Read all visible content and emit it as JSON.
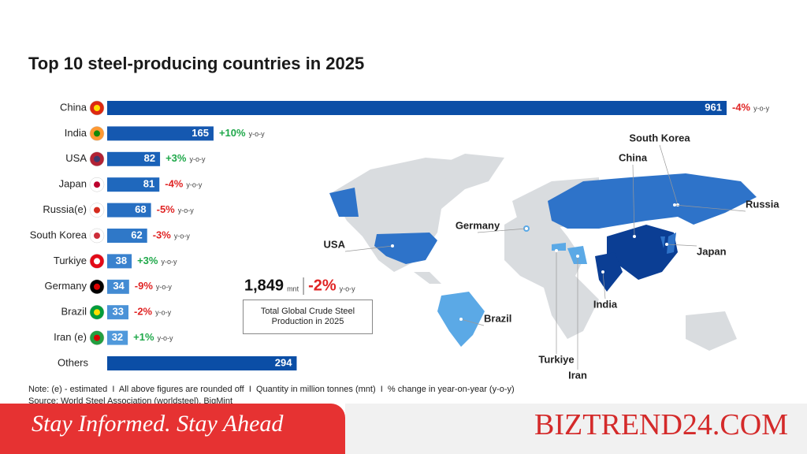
{
  "chart_data": {
    "type": "bar",
    "orientation": "horizontal",
    "title": "Top 10 steel-producing countries in 2025",
    "categories": [
      "China",
      "India",
      "USA",
      "Japan",
      "Russia(e)",
      "South Korea",
      "Turkiye",
      "Germany",
      "Brazil",
      "Iran (e)",
      "Others"
    ],
    "values": [
      961,
      165,
      82,
      81,
      68,
      62,
      38,
      34,
      33,
      32,
      294
    ],
    "colors": [
      "#0b4ea6",
      "#1558b0",
      "#1a62b8",
      "#1f68bd",
      "#276fc2",
      "#2f78c8",
      "#3a82ce",
      "#438bd3",
      "#4a92d7",
      "#5099db",
      "#0b4ea6"
    ],
    "changes": [
      "-4%",
      "+10%",
      "+3%",
      "-4%",
      "-5%",
      "-3%",
      "+3%",
      "-9%",
      "-2%",
      "+1%"
    ],
    "change_unit": "y-o-y",
    "total": {
      "value": 1849,
      "label": "1,849",
      "unit": "mnt",
      "change": "-2%",
      "change_unit": "y-o-y",
      "caption": "Total Global Crude Steel Production in 2025"
    },
    "map_labels": [
      "South Korea",
      "China",
      "Russia",
      "Japan",
      "India",
      "Germany",
      "USA",
      "Brazil",
      "Turkiye",
      "Iran"
    ],
    "note": "Note: (e) - estimated  I  All above figures are rounded off  I  Quantity in million tonnes (mnt)  I  % change in year-on-year (y-o-y)",
    "source": "Source: World Steel Association (worldsteel), BigMint"
  },
  "banner": {
    "tagline": "Stay Informed. Stay Ahead",
    "brand": "BIZTREND24.COM"
  }
}
